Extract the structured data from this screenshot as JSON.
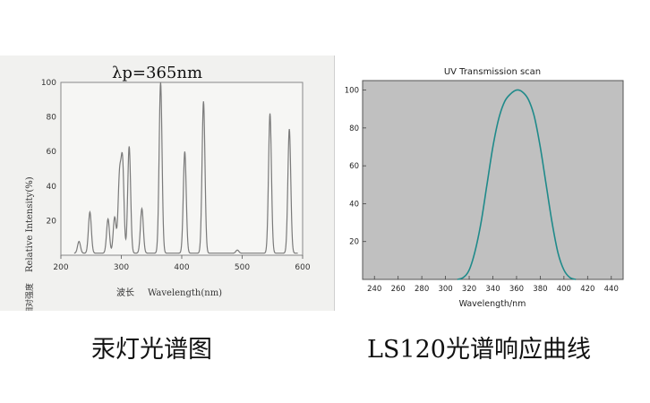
{
  "captions": {
    "left": "汞灯光谱图",
    "right": "LS120光谱响应曲线"
  },
  "chart_data": [
    {
      "type": "line",
      "annotation": "λp=365nm",
      "xlabel_cn": "波长",
      "xlabel": "Wavelength(nm)",
      "ylabel_cn": "相对强度",
      "ylabel": "Relative Intensity(%)",
      "xlim": [
        200,
        600
      ],
      "ylim": [
        0,
        100
      ],
      "xticks": [
        "200",
        "300",
        "400",
        "500",
        "600"
      ],
      "yticks": [
        "20",
        "40",
        "60",
        "80",
        "100"
      ],
      "peaks": [
        {
          "x": 230,
          "y": 8
        },
        {
          "x": 248,
          "y": 25
        },
        {
          "x": 278,
          "y": 21
        },
        {
          "x": 289,
          "y": 22
        },
        {
          "x": 297,
          "y": 44
        },
        {
          "x": 302,
          "y": 53
        },
        {
          "x": 313,
          "y": 63
        },
        {
          "x": 334,
          "y": 27
        },
        {
          "x": 365,
          "y": 100
        },
        {
          "x": 405,
          "y": 60
        },
        {
          "x": 436,
          "y": 89
        },
        {
          "x": 492,
          "y": 3
        },
        {
          "x": 546,
          "y": 82
        },
        {
          "x": 578,
          "y": 73
        }
      ],
      "grid": true,
      "colors": {
        "line": "#7a7a7a",
        "annotation": "#111111"
      }
    },
    {
      "type": "line",
      "title": "UV Transmission scan",
      "xlabel": "Wavelength/nm",
      "xlim": [
        230,
        450
      ],
      "ylim": [
        0,
        105
      ],
      "xticks": [
        "240",
        "260",
        "280",
        "300",
        "320",
        "340",
        "360",
        "380",
        "400",
        "420",
        "440"
      ],
      "yticks": [
        "20",
        "40",
        "60",
        "80",
        "100"
      ],
      "x": [
        310,
        315,
        320,
        325,
        330,
        335,
        340,
        345,
        350,
        355,
        360,
        365,
        370,
        375,
        380,
        385,
        390,
        395,
        400,
        405,
        410
      ],
      "y": [
        0,
        1,
        5,
        15,
        30,
        50,
        70,
        85,
        94,
        98,
        100,
        99,
        95,
        86,
        70,
        50,
        30,
        14,
        5,
        1,
        0
      ],
      "grid": false,
      "colors": {
        "plot_bg": "#c0c0c0",
        "line": "#1f8a8a"
      }
    }
  ]
}
